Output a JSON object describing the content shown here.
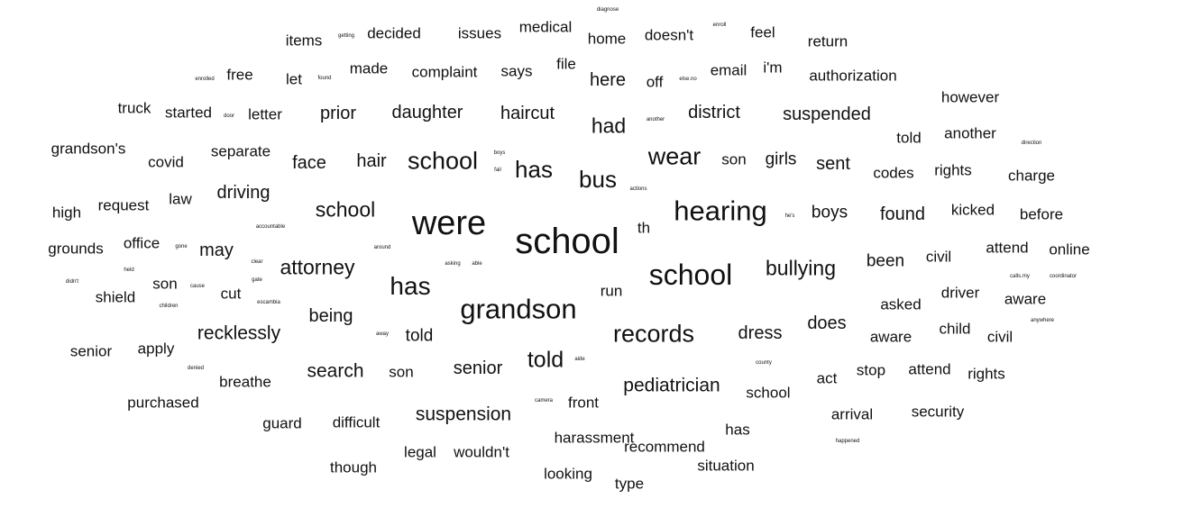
{
  "text_color": "#111111",
  "background": "#ffffff",
  "words": [
    {
      "text": "school",
      "weight": 40
    },
    {
      "text": "were",
      "weight": 38
    },
    {
      "text": "school",
      "weight": 32
    },
    {
      "text": "grandson",
      "weight": 31
    },
    {
      "text": "hearing",
      "weight": 31
    },
    {
      "text": "has",
      "weight": 28
    },
    {
      "text": "records",
      "weight": 27
    },
    {
      "text": "wear",
      "weight": 27
    },
    {
      "text": "school",
      "weight": 27
    },
    {
      "text": "has",
      "weight": 26
    },
    {
      "text": "bus",
      "weight": 26
    },
    {
      "text": "told",
      "weight": 25
    },
    {
      "text": "bullying",
      "weight": 23
    },
    {
      "text": "attorney",
      "weight": 23
    },
    {
      "text": "had",
      "weight": 23
    },
    {
      "text": "school",
      "weight": 23
    },
    {
      "text": "pediatrician",
      "weight": 21
    },
    {
      "text": "suspension",
      "weight": 21
    },
    {
      "text": "recklessly",
      "weight": 21
    },
    {
      "text": "search",
      "weight": 21
    },
    {
      "text": "senior",
      "weight": 20
    },
    {
      "text": "daughter",
      "weight": 20
    },
    {
      "text": "haircut",
      "weight": 20
    },
    {
      "text": "suspended",
      "weight": 20
    },
    {
      "text": "district",
      "weight": 20
    },
    {
      "text": "prior",
      "weight": 20
    },
    {
      "text": "dress",
      "weight": 20
    },
    {
      "text": "does",
      "weight": 20
    },
    {
      "text": "being",
      "weight": 20
    },
    {
      "text": "found",
      "weight": 20
    },
    {
      "text": "driving",
      "weight": 20
    },
    {
      "text": "may",
      "weight": 20
    },
    {
      "text": "face",
      "weight": 20
    },
    {
      "text": "hair",
      "weight": 20
    },
    {
      "text": "sent",
      "weight": 20
    },
    {
      "text": "here",
      "weight": 20
    },
    {
      "text": "boys",
      "weight": 19
    },
    {
      "text": "girls",
      "weight": 19
    },
    {
      "text": "been",
      "weight": 19
    },
    {
      "text": "told",
      "weight": 19
    },
    {
      "text": "medical",
      "weight": 17
    },
    {
      "text": "issues",
      "weight": 17
    },
    {
      "text": "decided",
      "weight": 17
    },
    {
      "text": "items",
      "weight": 17
    },
    {
      "text": "home",
      "weight": 17
    },
    {
      "text": "doesn't",
      "weight": 17
    },
    {
      "text": "feel",
      "weight": 17
    },
    {
      "text": "return",
      "weight": 17
    },
    {
      "text": "made",
      "weight": 17
    },
    {
      "text": "complaint",
      "weight": 17
    },
    {
      "text": "says",
      "weight": 17
    },
    {
      "text": "free",
      "weight": 17
    },
    {
      "text": "let",
      "weight": 17
    },
    {
      "text": "file",
      "weight": 17
    },
    {
      "text": "off",
      "weight": 17
    },
    {
      "text": "email",
      "weight": 17
    },
    {
      "text": "i'm",
      "weight": 17
    },
    {
      "text": "authorization",
      "weight": 17
    },
    {
      "text": "however",
      "weight": 17
    },
    {
      "text": "truck",
      "weight": 17
    },
    {
      "text": "started",
      "weight": 17
    },
    {
      "text": "letter",
      "weight": 17
    },
    {
      "text": "told",
      "weight": 17
    },
    {
      "text": "another",
      "weight": 17
    },
    {
      "text": "grandson's",
      "weight": 17
    },
    {
      "text": "covid",
      "weight": 17
    },
    {
      "text": "separate",
      "weight": 17
    },
    {
      "text": "son",
      "weight": 17
    },
    {
      "text": "codes",
      "weight": 17
    },
    {
      "text": "rights",
      "weight": 17
    },
    {
      "text": "charge",
      "weight": 17
    },
    {
      "text": "high",
      "weight": 17
    },
    {
      "text": "request",
      "weight": 17
    },
    {
      "text": "law",
      "weight": 17
    },
    {
      "text": "kicked",
      "weight": 17
    },
    {
      "text": "before",
      "weight": 17
    },
    {
      "text": "grounds",
      "weight": 17
    },
    {
      "text": "office",
      "weight": 17
    },
    {
      "text": "civil",
      "weight": 17
    },
    {
      "text": "attend",
      "weight": 17
    },
    {
      "text": "online",
      "weight": 17
    },
    {
      "text": "son",
      "weight": 17
    },
    {
      "text": "cut",
      "weight": 17
    },
    {
      "text": "shield",
      "weight": 17
    },
    {
      "text": "run",
      "weight": 17
    },
    {
      "text": "driver",
      "weight": 17
    },
    {
      "text": "aware",
      "weight": 17
    },
    {
      "text": "asked",
      "weight": 17
    },
    {
      "text": "child",
      "weight": 17
    },
    {
      "text": "civil",
      "weight": 17
    },
    {
      "text": "aware",
      "weight": 17
    },
    {
      "text": "senior",
      "weight": 17
    },
    {
      "text": "apply",
      "weight": 17
    },
    {
      "text": "son",
      "weight": 17
    },
    {
      "text": "breathe",
      "weight": 17
    },
    {
      "text": "act",
      "weight": 17
    },
    {
      "text": "stop",
      "weight": 17
    },
    {
      "text": "attend",
      "weight": 17
    },
    {
      "text": "rights",
      "weight": 17
    },
    {
      "text": "school",
      "weight": 17
    },
    {
      "text": "purchased",
      "weight": 17
    },
    {
      "text": "front",
      "weight": 17
    },
    {
      "text": "guard",
      "weight": 17
    },
    {
      "text": "difficult",
      "weight": 17
    },
    {
      "text": "arrival",
      "weight": 17
    },
    {
      "text": "security",
      "weight": 17
    },
    {
      "text": "harassment",
      "weight": 17
    },
    {
      "text": "recommend",
      "weight": 17
    },
    {
      "text": "has",
      "weight": 17
    },
    {
      "text": "legal",
      "weight": 17
    },
    {
      "text": "wouldn't",
      "weight": 17
    },
    {
      "text": "though",
      "weight": 17
    },
    {
      "text": "situation",
      "weight": 17
    },
    {
      "text": "looking",
      "weight": 17
    },
    {
      "text": "type",
      "weight": 17
    },
    {
      "text": "th",
      "weight": 17
    },
    {
      "text": "diagnose",
      "weight": 6
    },
    {
      "text": "enroll",
      "weight": 6
    },
    {
      "text": "getting",
      "weight": 6
    },
    {
      "text": "enrolled",
      "weight": 6
    },
    {
      "text": "found",
      "weight": 6
    },
    {
      "text": "else.no",
      "weight": 6
    },
    {
      "text": "door",
      "weight": 6
    },
    {
      "text": "another",
      "weight": 6
    },
    {
      "text": "boys",
      "weight": 6
    },
    {
      "text": "fail",
      "weight": 6
    },
    {
      "text": "direction",
      "weight": 6
    },
    {
      "text": "actions",
      "weight": 6
    },
    {
      "text": "accountable",
      "weight": 6
    },
    {
      "text": "he's",
      "weight": 6
    },
    {
      "text": "gone",
      "weight": 6
    },
    {
      "text": "around",
      "weight": 6
    },
    {
      "text": "clear",
      "weight": 6
    },
    {
      "text": "asking",
      "weight": 6
    },
    {
      "text": "able",
      "weight": 6
    },
    {
      "text": "held",
      "weight": 6
    },
    {
      "text": "gate",
      "weight": 6
    },
    {
      "text": "didn't",
      "weight": 6
    },
    {
      "text": "cause",
      "weight": 6
    },
    {
      "text": "escambia",
      "weight": 6
    },
    {
      "text": "children",
      "weight": 6
    },
    {
      "text": "calls.my",
      "weight": 6
    },
    {
      "text": "coordinator",
      "weight": 6
    },
    {
      "text": "anywhere",
      "weight": 6
    },
    {
      "text": "away",
      "weight": 6
    },
    {
      "text": "aide",
      "weight": 6
    },
    {
      "text": "county",
      "weight": 6
    },
    {
      "text": "denied",
      "weight": 6
    },
    {
      "text": "camera",
      "weight": 6
    },
    {
      "text": "happened",
      "weight": 6
    }
  ]
}
